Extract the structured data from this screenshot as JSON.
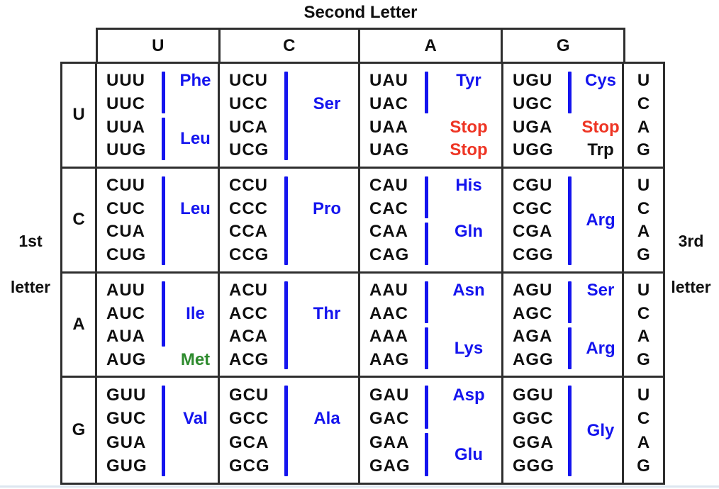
{
  "figure": {
    "second_letter_label": "Second Letter",
    "first_letter_label": {
      "line1": "1st",
      "line2": "letter"
    },
    "third_letter_label": {
      "line1": "3rd",
      "line2": "letter"
    },
    "column_headers": [
      "U",
      "C",
      "A",
      "G"
    ],
    "third_letter_sequence": [
      "U",
      "C",
      "A",
      "G"
    ],
    "rows": [
      {
        "first_letter": "U",
        "cells": [
          {
            "codons": [
              "UUU",
              "UUC",
              "UUA",
              "UUG"
            ],
            "groups": [
              {
                "rows": [
                  1,
                  2
                ],
                "bar": true,
                "label": "Phe",
                "color": "blue",
                "label_pos": 1
              },
              {
                "rows": [
                  3,
                  4
                ],
                "bar": true,
                "label": "Leu",
                "color": "blue",
                "label_pos": "mid"
              }
            ]
          },
          {
            "codons": [
              "UCU",
              "UCC",
              "UCA",
              "UCG"
            ],
            "groups": [
              {
                "rows": [
                  1,
                  4
                ],
                "bar": true,
                "label": "Ser",
                "color": "blue",
                "label_pos": 2
              }
            ]
          },
          {
            "codons": [
              "UAU",
              "UAC",
              "UAA",
              "UAG"
            ],
            "groups": [
              {
                "rows": [
                  1,
                  2
                ],
                "bar": true,
                "label": "Tyr",
                "color": "blue",
                "label_pos": 1
              },
              {
                "rows": [
                  3,
                  3
                ],
                "bar": false,
                "label": "Stop",
                "color": "red",
                "label_pos": 3
              },
              {
                "rows": [
                  4,
                  4
                ],
                "bar": false,
                "label": "Stop",
                "color": "red",
                "label_pos": 4
              }
            ]
          },
          {
            "codons": [
              "UGU",
              "UGC",
              "UGA",
              "UGG"
            ],
            "groups": [
              {
                "rows": [
                  1,
                  2
                ],
                "bar": true,
                "label": "Cys",
                "color": "blue",
                "label_pos": 1
              },
              {
                "rows": [
                  3,
                  3
                ],
                "bar": false,
                "label": "Stop",
                "color": "red",
                "label_pos": 3
              },
              {
                "rows": [
                  4,
                  4
                ],
                "bar": false,
                "label": "Trp",
                "color": "black",
                "label_pos": 4
              }
            ]
          }
        ]
      },
      {
        "first_letter": "C",
        "cells": [
          {
            "codons": [
              "CUU",
              "CUC",
              "CUA",
              "CUG"
            ],
            "groups": [
              {
                "rows": [
                  1,
                  4
                ],
                "bar": true,
                "label": "Leu",
                "color": "blue",
                "label_pos": 2
              }
            ]
          },
          {
            "codons": [
              "CCU",
              "CCC",
              "CCA",
              "CCG"
            ],
            "groups": [
              {
                "rows": [
                  1,
                  4
                ],
                "bar": true,
                "label": "Pro",
                "color": "blue",
                "label_pos": 2
              }
            ]
          },
          {
            "codons": [
              "CAU",
              "CAC",
              "CAA",
              "CAG"
            ],
            "groups": [
              {
                "rows": [
                  1,
                  2
                ],
                "bar": true,
                "label": "His",
                "color": "blue",
                "label_pos": 1
              },
              {
                "rows": [
                  3,
                  4
                ],
                "bar": true,
                "label": "Gln",
                "color": "blue",
                "label_pos": 3
              }
            ]
          },
          {
            "codons": [
              "CGU",
              "CGC",
              "CGA",
              "CGG"
            ],
            "groups": [
              {
                "rows": [
                  1,
                  4
                ],
                "bar": true,
                "label": "Arg",
                "color": "blue",
                "label_pos": "mid"
              }
            ]
          }
        ]
      },
      {
        "first_letter": "A",
        "cells": [
          {
            "codons": [
              "AUU",
              "AUC",
              "AUA",
              "AUG"
            ],
            "groups": [
              {
                "rows": [
                  1,
                  3
                ],
                "bar": true,
                "label": "Ile",
                "color": "blue",
                "label_pos": 2
              },
              {
                "rows": [
                  4,
                  4
                ],
                "bar": false,
                "label": "Met",
                "color": "green",
                "label_pos": 4
              }
            ]
          },
          {
            "codons": [
              "ACU",
              "ACC",
              "ACA",
              "ACG"
            ],
            "groups": [
              {
                "rows": [
                  1,
                  4
                ],
                "bar": true,
                "label": "Thr",
                "color": "blue",
                "label_pos": 2
              }
            ]
          },
          {
            "codons": [
              "AAU",
              "AAC",
              "AAA",
              "AAG"
            ],
            "groups": [
              {
                "rows": [
                  1,
                  2
                ],
                "bar": true,
                "label": "Asn",
                "color": "blue",
                "label_pos": 1
              },
              {
                "rows": [
                  3,
                  4
                ],
                "bar": true,
                "label": "Lys",
                "color": "blue",
                "label_pos": "mid"
              }
            ]
          },
          {
            "codons": [
              "AGU",
              "AGC",
              "AGA",
              "AGG"
            ],
            "groups": [
              {
                "rows": [
                  1,
                  2
                ],
                "bar": true,
                "label": "Ser",
                "color": "blue",
                "label_pos": 1
              },
              {
                "rows": [
                  3,
                  4
                ],
                "bar": true,
                "label": "Arg",
                "color": "blue",
                "label_pos": "mid"
              }
            ]
          }
        ]
      },
      {
        "first_letter": "G",
        "cells": [
          {
            "codons": [
              "GUU",
              "GUC",
              "GUA",
              "GUG"
            ],
            "groups": [
              {
                "rows": [
                  1,
                  4
                ],
                "bar": true,
                "label": "Val",
                "color": "blue",
                "label_pos": 2
              }
            ]
          },
          {
            "codons": [
              "GCU",
              "GCC",
              "GCA",
              "GCG"
            ],
            "groups": [
              {
                "rows": [
                  1,
                  4
                ],
                "bar": true,
                "label": "Ala",
                "color": "blue",
                "label_pos": 2
              }
            ]
          },
          {
            "codons": [
              "GAU",
              "GAC",
              "GAA",
              "GAG"
            ],
            "groups": [
              {
                "rows": [
                  1,
                  2
                ],
                "bar": true,
                "label": "Asp",
                "color": "blue",
                "label_pos": 1
              },
              {
                "rows": [
                  3,
                  4
                ],
                "bar": true,
                "label": "Glu",
                "color": "blue",
                "label_pos": "mid"
              }
            ]
          },
          {
            "codons": [
              "GGU",
              "GGC",
              "GGA",
              "GGG"
            ],
            "groups": [
              {
                "rows": [
                  1,
                  4
                ],
                "bar": true,
                "label": "Gly",
                "color": "blue",
                "label_pos": "mid"
              }
            ]
          }
        ]
      }
    ]
  },
  "colors": {
    "amino_blue": "#1414ee",
    "stop_red": "#ee3524",
    "met_green": "#2e8b2e",
    "codon_black": "#0f0f0f",
    "grid_border": "#2e2e2e",
    "bottom_rule": "#dde6f0"
  }
}
